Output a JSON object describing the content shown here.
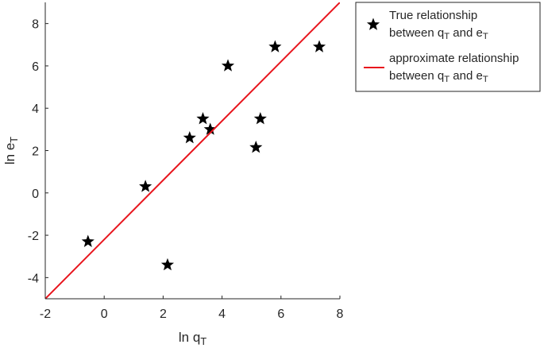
{
  "chart_data": {
    "type": "scatter",
    "xlim": [
      -2,
      8
    ],
    "ylim": [
      -5,
      9
    ],
    "x_ticks": [
      -2,
      0,
      2,
      4,
      6,
      8
    ],
    "y_ticks": [
      -4,
      -2,
      0,
      2,
      4,
      6,
      8
    ],
    "xlabel": {
      "main": "ln q",
      "sub": "T"
    },
    "ylabel": {
      "main": "ln e",
      "sub": "T"
    },
    "grid": false,
    "legend_position": "top-right-outside",
    "series": [
      {
        "kind": "scatter",
        "marker": "star",
        "color": "#000000",
        "legend": [
          {
            "text": "True relationship"
          },
          {
            "text": "between q",
            "sub": "T",
            "tail": " and e",
            "sub2": "T"
          }
        ],
        "points": [
          {
            "x": -0.55,
            "y": -2.3
          },
          {
            "x": 1.4,
            "y": 0.3
          },
          {
            "x": 2.15,
            "y": -3.4
          },
          {
            "x": 2.9,
            "y": 2.6
          },
          {
            "x": 3.35,
            "y": 3.5
          },
          {
            "x": 3.6,
            "y": 3.0
          },
          {
            "x": 4.2,
            "y": 6.0
          },
          {
            "x": 5.15,
            "y": 2.15
          },
          {
            "x": 5.3,
            "y": 3.5
          },
          {
            "x": 5.8,
            "y": 6.9
          },
          {
            "x": 7.3,
            "y": 6.9
          }
        ]
      },
      {
        "kind": "line",
        "color": "#e8141c",
        "legend": [
          {
            "text": "approximate relationship"
          },
          {
            "text": "between q",
            "sub": "T",
            "tail": " and e",
            "sub2": "T"
          }
        ],
        "points": [
          {
            "x": -2,
            "y": -5
          },
          {
            "x": 8,
            "y": 9
          }
        ]
      }
    ]
  }
}
